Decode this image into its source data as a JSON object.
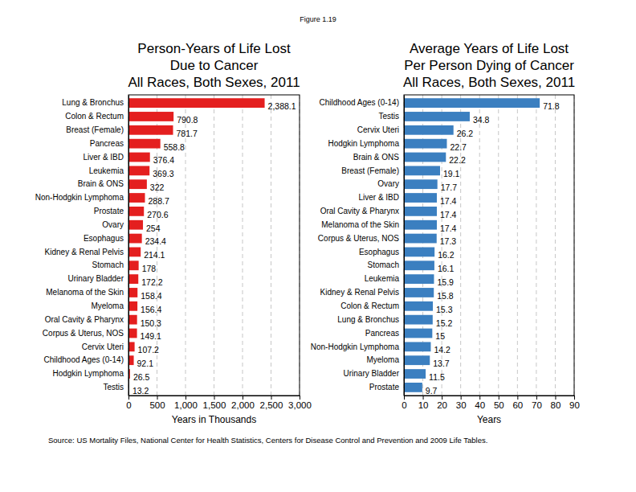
{
  "figure": "Figure 1.19",
  "source": "Source: US Mortality Files, National Center for Health Statistics, Centers for Disease Control and Prevention and 2009 Life Tables.",
  "chart_data": [
    {
      "type": "bar",
      "orientation": "horizontal",
      "title": "Person-Years of Life Lost\nDue to Cancer\nAll Races, Both Sexes, 2011",
      "x_label": "Years in Thousands",
      "categories": [
        "Lung & Bronchus",
        "Colon & Rectum",
        "Breast (Female)",
        "Pancreas",
        "Liver & IBD",
        "Leukemia",
        "Brain & ONS",
        "Non-Hodgkin Lymphoma",
        "Prostate",
        "Ovary",
        "Esophagus",
        "Kidney & Renal Pelvis",
        "Stomach",
        "Urinary Bladder",
        "Melanoma of the Skin",
        "Myeloma",
        "Oral Cavity & Pharynx",
        "Corpus & Uterus, NOS",
        "Cervix Uteri",
        "Childhood Ages (0-14)",
        "Hodgkin Lymphoma",
        "Testis"
      ],
      "values": [
        2388.1,
        790.8,
        781.7,
        558.8,
        376.4,
        369.3,
        322,
        288.7,
        270.6,
        254,
        234.4,
        214.1,
        178,
        172.2,
        158.4,
        156.4,
        150.3,
        149.1,
        107.2,
        92.1,
        26.5,
        13.2
      ],
      "value_labels": [
        "2,388.1",
        "790.8",
        "781.7",
        "558.8",
        "376.4",
        "369.3",
        "322",
        "288.7",
        "270.6",
        "254",
        "234.4",
        "214.1",
        "178",
        "172.2",
        "158.4",
        "156.4",
        "150.3",
        "149.1",
        "107.2",
        "92.1",
        "26.5",
        "13.2"
      ],
      "color": "#e41f1f",
      "xlim": [
        0,
        3000
      ],
      "xticks": [
        0,
        500,
        {
          "value": 1000,
          "label": "1,000"
        },
        {
          "value": 1500,
          "label": "1,500"
        },
        {
          "value": 2000,
          "label": "2,000"
        },
        {
          "value": 2500,
          "label": "2,500"
        },
        {
          "value": 3000,
          "label": "3,000"
        }
      ],
      "grid": true,
      "data_labels": true
    },
    {
      "type": "bar",
      "orientation": "horizontal",
      "title": "Average Years of Life Lost\nPer Person Dying of Cancer\nAll Races, Both Sexes, 2011",
      "x_label": "Years",
      "categories": [
        "Childhood Ages (0-14)",
        "Testis",
        "Cervix Uteri",
        "Hodgkin Lymphoma",
        "Brain & ONS",
        "Breast (Female)",
        "Ovary",
        "Liver & IBD",
        "Oral Cavity & Pharynx",
        "Melanoma of the Skin",
        "Corpus & Uterus, NOS",
        "Esophagus",
        "Stomach",
        "Leukemia",
        "Kidney & Renal Pelvis",
        "Colon & Rectum",
        "Lung & Bronchus",
        "Pancreas",
        "Non-Hodgkin Lymphoma",
        "Myeloma",
        "Urinary Bladder",
        "Prostate"
      ],
      "values": [
        71.8,
        34.8,
        26.2,
        22.7,
        22.2,
        19.1,
        17.7,
        17.4,
        17.4,
        17.4,
        17.3,
        16.2,
        16.1,
        15.9,
        15.8,
        15.3,
        15.2,
        15,
        14.2,
        13.7,
        11.5,
        9.7
      ],
      "color": "#3b7fc0",
      "xlim": [
        0,
        90
      ],
      "xticks": [
        0,
        10,
        20,
        30,
        40,
        50,
        60,
        70,
        80,
        90
      ],
      "grid": true,
      "data_labels": true
    }
  ]
}
